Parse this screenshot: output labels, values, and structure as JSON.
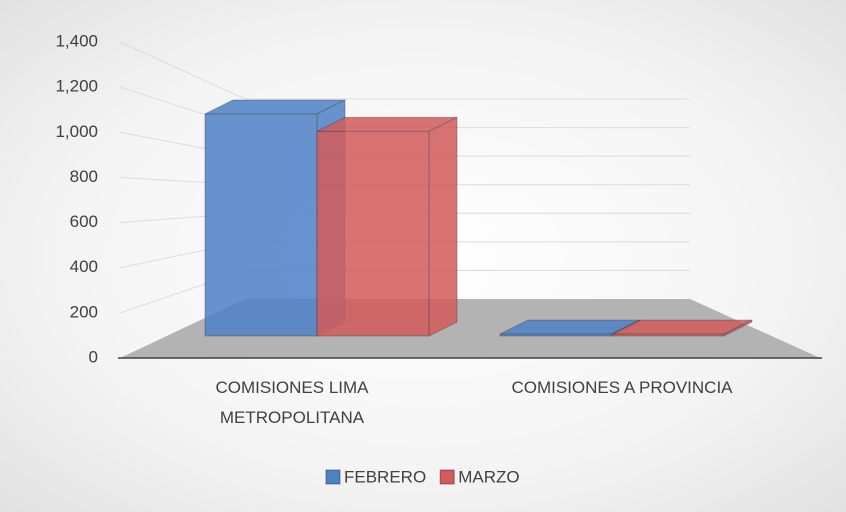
{
  "chart_data": {
    "type": "bar3d",
    "categories": [
      "COMISIONES LIMA METROPOLITANA",
      "COMISIONES A PROVINCIA"
    ],
    "series": [
      {
        "name": "FEBRERO",
        "color": "#4f81c7",
        "values": [
          1150,
          10
        ]
      },
      {
        "name": "MARZO",
        "color": "#d35b5b",
        "values": [
          1060,
          10
        ]
      }
    ],
    "ylim": [
      0,
      1400
    ],
    "yticks": [
      0,
      {
        "value": 200,
        "label": "200"
      },
      400,
      600,
      800,
      {
        "value": 1000,
        "label": "1,000"
      },
      {
        "value": 1200,
        "label": "1,200"
      },
      {
        "value": 1400,
        "label": "1,400"
      }
    ],
    "grid": true,
    "legend": "bottom"
  }
}
